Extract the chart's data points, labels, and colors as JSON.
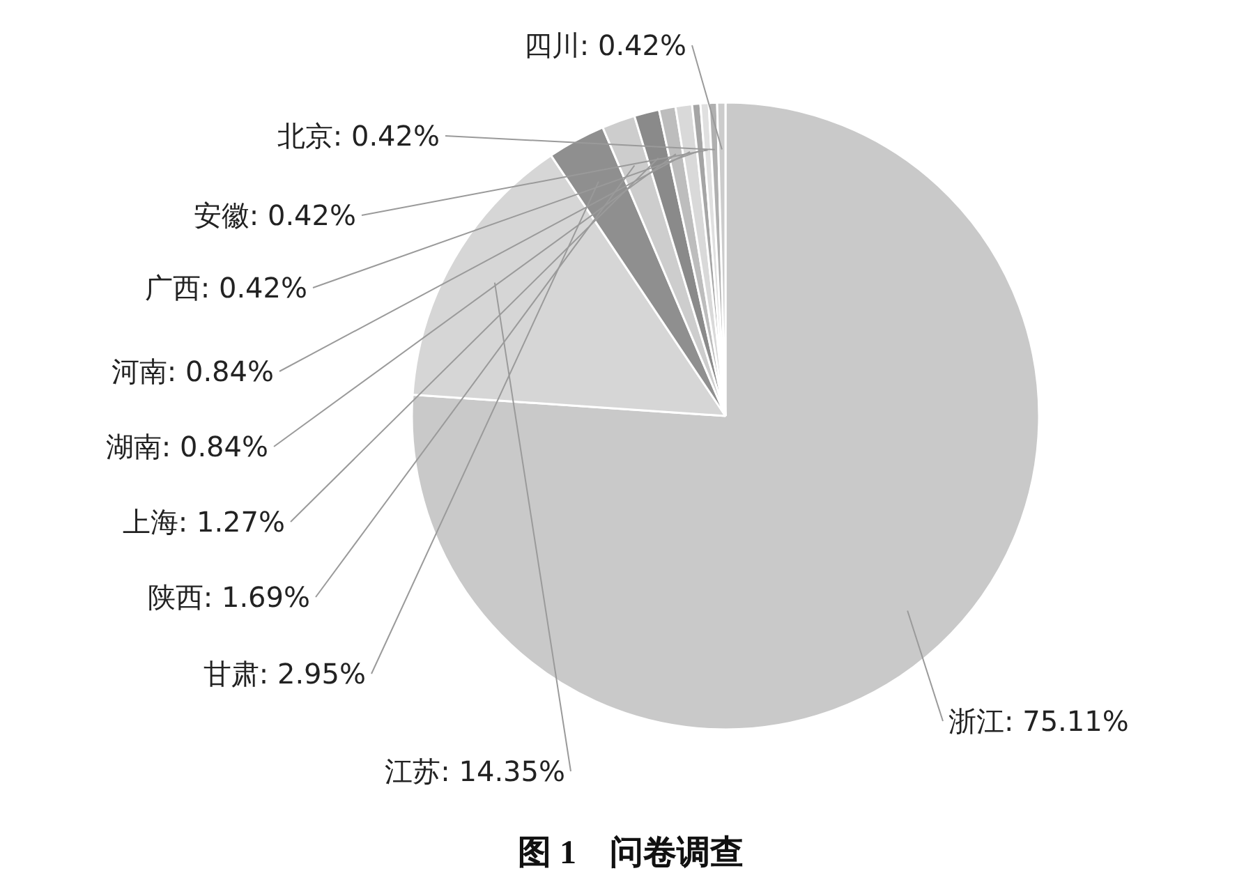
{
  "chart_data": {
    "type": "pie",
    "title": "图 1　问卷调查",
    "categories": [
      "浙江",
      "江苏",
      "甘肃",
      "陕西",
      "上海",
      "湖南",
      "河南",
      "广西",
      "安徽",
      "北京",
      "四川"
    ],
    "values": [
      75.11,
      14.35,
      2.95,
      1.69,
      1.27,
      0.84,
      0.84,
      0.42,
      0.42,
      0.42,
      0.42
    ],
    "value_labels": [
      "75.11%",
      "14.35%",
      "2.95%",
      "1.69%",
      "1.27%",
      "0.84%",
      "0.84%",
      "0.42%",
      "0.42%",
      "0.42%",
      "0.42%"
    ],
    "colors": [
      "#c9c9c9",
      "#d6d6d6",
      "#8f8f8f",
      "#cdcdcd",
      "#8a8a8a",
      "#bdbdbd",
      "#d9d9d9",
      "#a5a5a5",
      "#e0e0e0",
      "#b0b0b0",
      "#cccccc"
    ]
  }
}
